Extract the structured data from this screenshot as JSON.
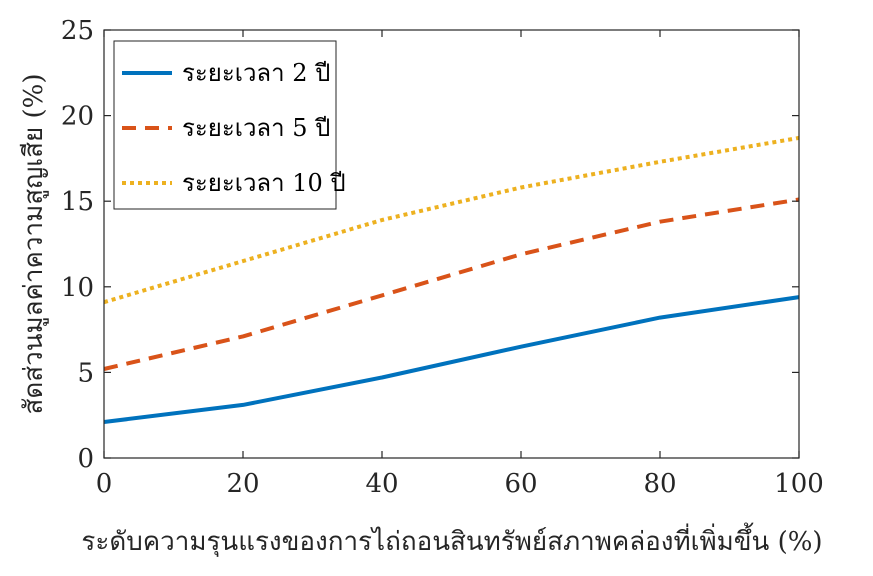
{
  "chart_data": {
    "type": "line",
    "xlabel": "ระดับความรุนแรงของการไถ่ถอนสินทรัพย์สภาพคล่องที่เพิ่มขึ้น (%)",
    "ylabel": "สัดส่วนมูลค่าความสูญเสีย (%)",
    "xlim": [
      0,
      100
    ],
    "ylim": [
      0,
      25
    ],
    "xticks": [
      "0",
      "20",
      "40",
      "60",
      "80",
      "100"
    ],
    "yticks": [
      "0",
      "5",
      "10",
      "15",
      "20",
      "25"
    ],
    "grid": false,
    "legend_position": "top-left",
    "x": [
      0,
      20,
      40,
      60,
      80,
      100
    ],
    "series": [
      {
        "name": "ระยะเวลา 2 ปี",
        "values": [
          2.1,
          3.1,
          4.7,
          6.5,
          8.2,
          9.4
        ],
        "color": "#0072BD",
        "style": "solid"
      },
      {
        "name": "ระยะเวลา 5 ปี",
        "values": [
          5.2,
          7.1,
          9.5,
          11.9,
          13.8,
          15.1
        ],
        "color": "#D95319",
        "style": "dashed"
      },
      {
        "name": "ระยะเวลา 10 ปี",
        "values": [
          9.1,
          11.5,
          13.9,
          15.8,
          17.3,
          18.7
        ],
        "color": "#EDB120",
        "style": "dotted"
      }
    ]
  }
}
